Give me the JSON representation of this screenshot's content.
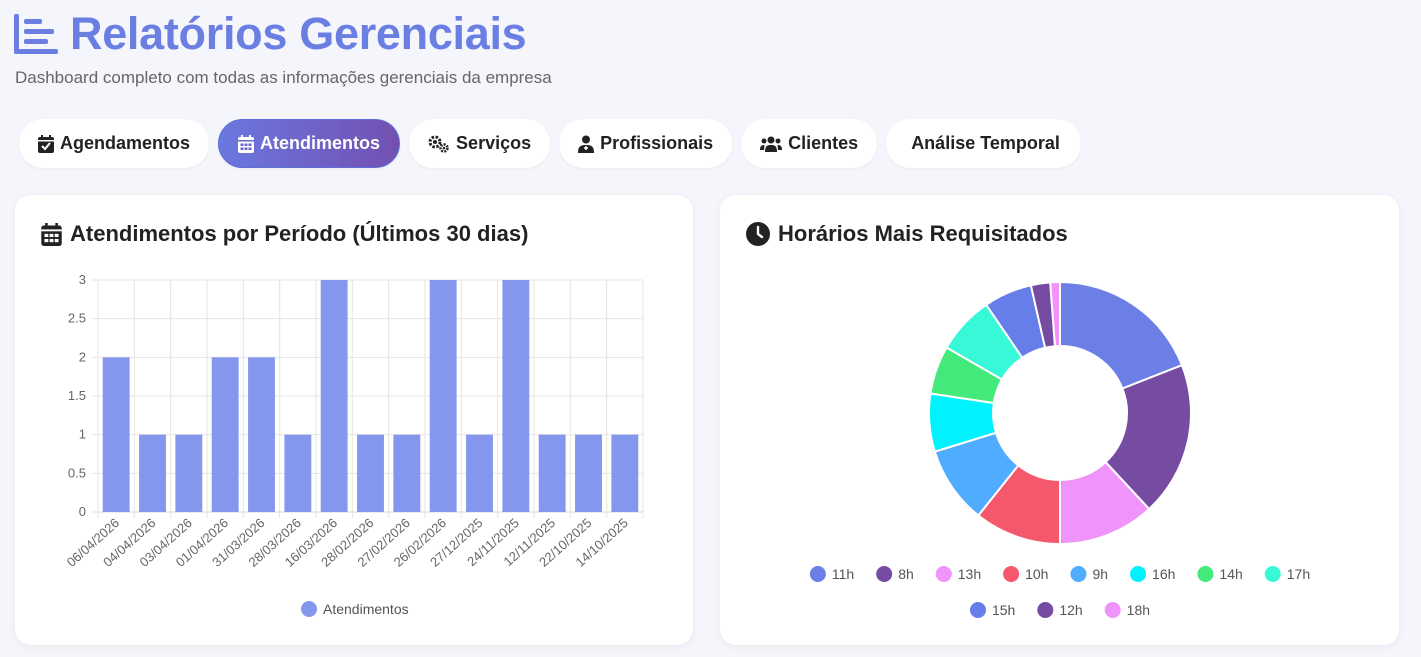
{
  "header": {
    "title": "Relatórios Gerenciais",
    "subtitle": "Dashboard completo com todas as informações gerenciais da empresa",
    "accent_color": "#6b7fe3"
  },
  "tabs": [
    {
      "label": "Agendamentos",
      "icon": "calendar-check-icon",
      "active": false
    },
    {
      "label": "Atendimentos",
      "icon": "calendar-icon",
      "active": true
    },
    {
      "label": "Serviços",
      "icon": "gears-icon",
      "active": false
    },
    {
      "label": "Profissionais",
      "icon": "user-doctor-icon",
      "active": false
    },
    {
      "label": "Clientes",
      "icon": "users-icon",
      "active": false
    },
    {
      "label": "Análise Temporal",
      "icon": "",
      "active": false
    }
  ],
  "bar_card": {
    "title": "Atendimentos por Período (Últimos 30 dias)",
    "icon": "calendar-icon"
  },
  "donut_card": {
    "title": "Horários Mais Requisitados",
    "icon": "clock-icon"
  },
  "chart_data": [
    {
      "type": "bar",
      "categories": [
        "06/04/2026",
        "04/04/2026",
        "03/04/2026",
        "01/04/2026",
        "31/03/2026",
        "28/03/2026",
        "16/03/2026",
        "28/02/2026",
        "27/02/2026",
        "26/02/2026",
        "27/12/2025",
        "24/11/2025",
        "12/11/2025",
        "22/10/2025",
        "14/10/2025"
      ],
      "series": [
        {
          "name": "Atendimentos",
          "values": [
            2,
            1,
            1,
            2,
            2,
            1,
            3,
            1,
            1,
            3,
            1,
            3,
            1,
            1,
            1
          ],
          "color": "#8497ec"
        }
      ],
      "y_ticks": [
        "0",
        "0.5",
        "1",
        "1.5",
        "2",
        "2.5",
        "3"
      ],
      "ylim": [
        0,
        3
      ],
      "grid": true,
      "legend": "bottom"
    },
    {
      "type": "pie",
      "donut": true,
      "labels": [
        "11h",
        "8h",
        "13h",
        "10h",
        "9h",
        "16h",
        "14h",
        "17h",
        "15h",
        "12h",
        "18h"
      ],
      "values": [
        16,
        16,
        10,
        9,
        8,
        6,
        5,
        6,
        5,
        2,
        1
      ],
      "colors": [
        "#6b7fe6",
        "#764ba2",
        "#f093fb",
        "#f5576c",
        "#4facfe",
        "#00f2fe",
        "#43e97b",
        "#38f9d7",
        "#667eea",
        "#764ba2",
        "#f093fb"
      ],
      "legend": "bottom"
    }
  ]
}
